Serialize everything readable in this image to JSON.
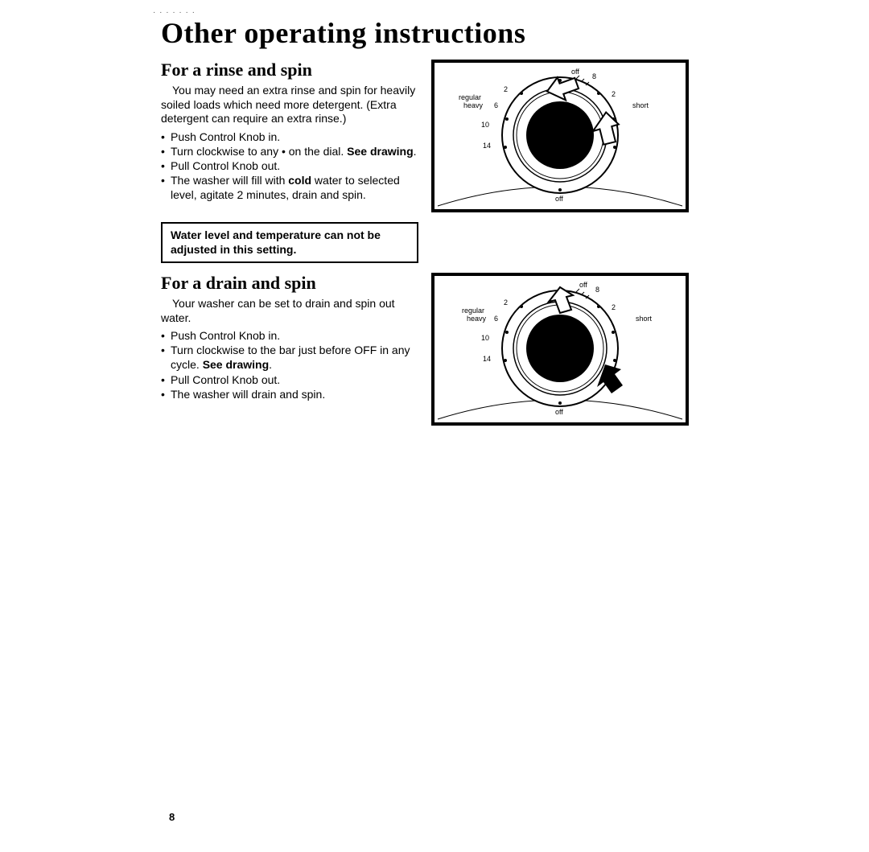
{
  "artifact_text": "· · · · ·  · ·",
  "main_title": "Other operating instructions",
  "section1": {
    "title": "For a rinse and spin",
    "intro": "You may need an extra rinse and spin for heavily soiled loads which need more detergent. (Extra detergent can require an extra rinse.)",
    "steps": [
      "Push Control Knob in.",
      "Turn clockwise to any • on the dial. <b>See drawing</b>.",
      "Pull Control Knob out.",
      "The washer will fill with <b>cold</b> water to selected level, agitate 2 minutes, drain and spin."
    ]
  },
  "note_box": "Water level and temperature can not be adjusted in this setting.",
  "section2": {
    "title": "For a drain and spin",
    "intro": "Your washer can be set to drain and spin out water.",
    "steps": [
      "Push Control Knob in.",
      "Turn clockwise to the bar just before OFF in any cycle. <b>See drawing</b>.",
      "Pull Control Knob out.",
      "The washer will drain and spin."
    ]
  },
  "dial": {
    "labels": {
      "off_top": "off",
      "off_bottom": "off",
      "regular": "regular",
      "heavy": "heavy",
      "short": "short",
      "n2a": "2",
      "n2b": "2",
      "n6": "6",
      "n8": "8",
      "n10": "10",
      "n14": "14"
    },
    "stroke_color": "#000000",
    "fill_color": "#000000",
    "bg_color": "#ffffff"
  },
  "page_number": "8",
  "colors": {
    "text": "#000000",
    "background": "#ffffff",
    "border": "#000000"
  }
}
